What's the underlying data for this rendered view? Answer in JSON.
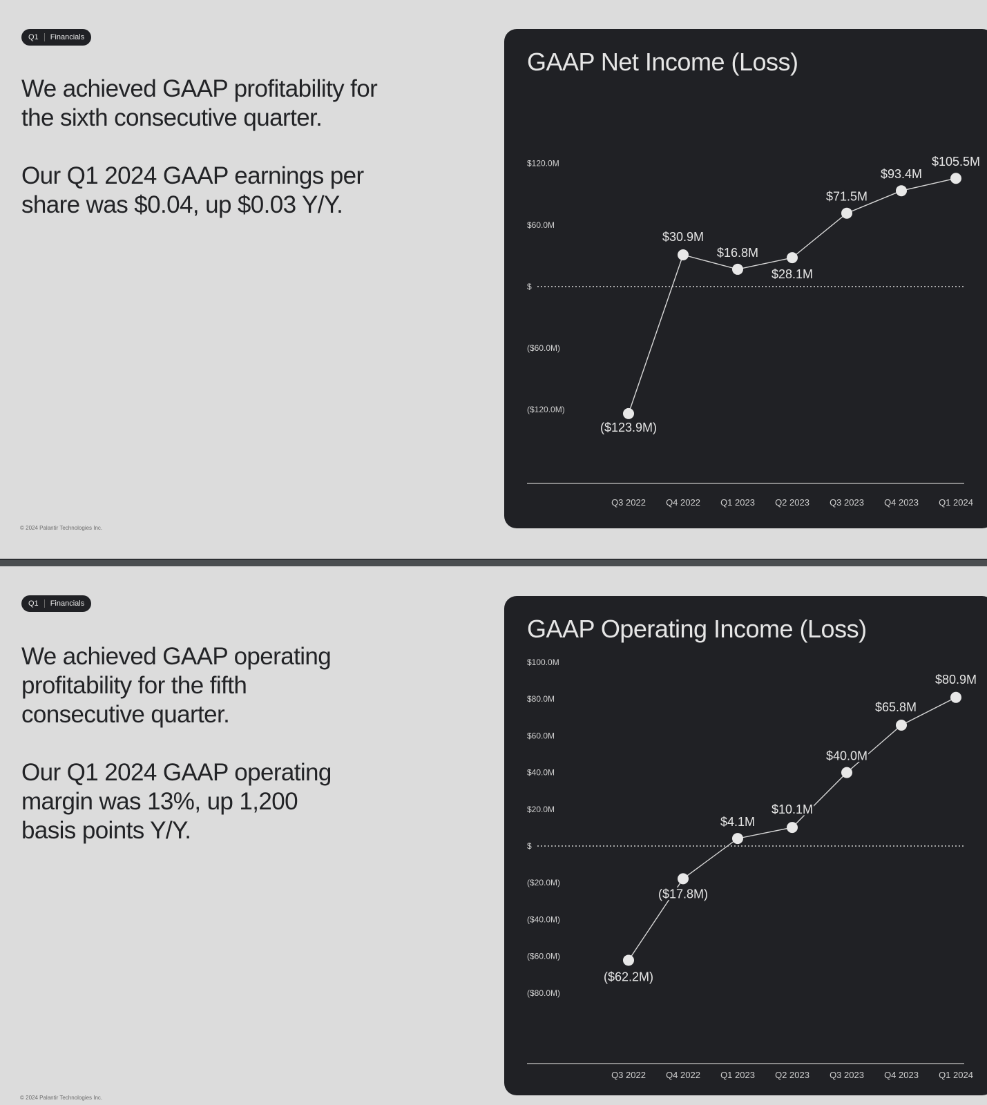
{
  "slides": [
    {
      "badge": {
        "quarter": "Q1",
        "section": "Financials"
      },
      "paragraphs": [
        "We achieved GAAP profitability for the sixth consecutive quarter.",
        "Our Q1 2024 GAAP earnings per share was $0.04, up $0.03 Y/Y."
      ],
      "footer": "© 2024 Palantir Technologies Inc."
    },
    {
      "badge": {
        "quarter": "Q1",
        "section": "Financials"
      },
      "paragraphs": [
        "We achieved GAAP operating profitability for the fifth consecutive quarter.",
        "Our Q1 2024 GAAP operating margin was 13%, up 1,200 basis points Y/Y."
      ],
      "footer": "© 2024 Palantir Technologies Inc."
    }
  ],
  "colors": {
    "background": "#dcdcdc",
    "panel": "#202125",
    "text_dark": "#222326",
    "text_light": "#e6e6e6",
    "axis_text": "#d0d0d0",
    "point": "#e8e8e8"
  },
  "chart_data": [
    {
      "type": "line",
      "title": "GAAP Net Income (Loss)",
      "categories": [
        "Q3 2022",
        "Q4 2022",
        "Q1 2023",
        "Q2 2023",
        "Q3 2023",
        "Q4 2023",
        "Q1 2024"
      ],
      "values": [
        -123.9,
        30.9,
        16.8,
        28.1,
        71.5,
        93.4,
        105.5
      ],
      "value_labels": [
        "($123.9M)",
        "$30.9M",
        "$16.8M",
        "$28.1M",
        "$71.5M",
        "$93.4M",
        "$105.5M"
      ],
      "yticks": [
        120,
        60,
        0,
        -60,
        -120
      ],
      "ytick_labels": [
        "$120.0M",
        "$60.0M",
        "$",
        "($60.0M)",
        "($120.0M)"
      ],
      "ylim": [
        -190,
        140
      ],
      "zero_line": "dotted",
      "grid": false
    },
    {
      "type": "line",
      "title": "GAAP Operating Income (Loss)",
      "categories": [
        "Q3 2022",
        "Q4 2022",
        "Q1 2023",
        "Q2 2023",
        "Q3 2023",
        "Q4 2023",
        "Q1 2024"
      ],
      "values": [
        -62.2,
        -17.8,
        4.1,
        10.1,
        40.0,
        65.8,
        80.9
      ],
      "value_labels": [
        "($62.2M)",
        "($17.8M)",
        "$4.1M",
        "$10.1M",
        "$40.0M",
        "$65.8M",
        "$80.9M"
      ],
      "yticks": [
        100,
        80,
        60,
        40,
        20,
        0,
        -20,
        -40,
        -60,
        -80
      ],
      "ytick_labels": [
        "$100.0M",
        "$80.0M",
        "$60.0M",
        "$40.0M",
        "$20.0M",
        "$",
        "($20.0M)",
        "($40.0M)",
        "($60.0M)",
        "($80.0M)"
      ],
      "ylim": [
        -100,
        100
      ],
      "zero_line": "dotted",
      "grid": false
    }
  ]
}
